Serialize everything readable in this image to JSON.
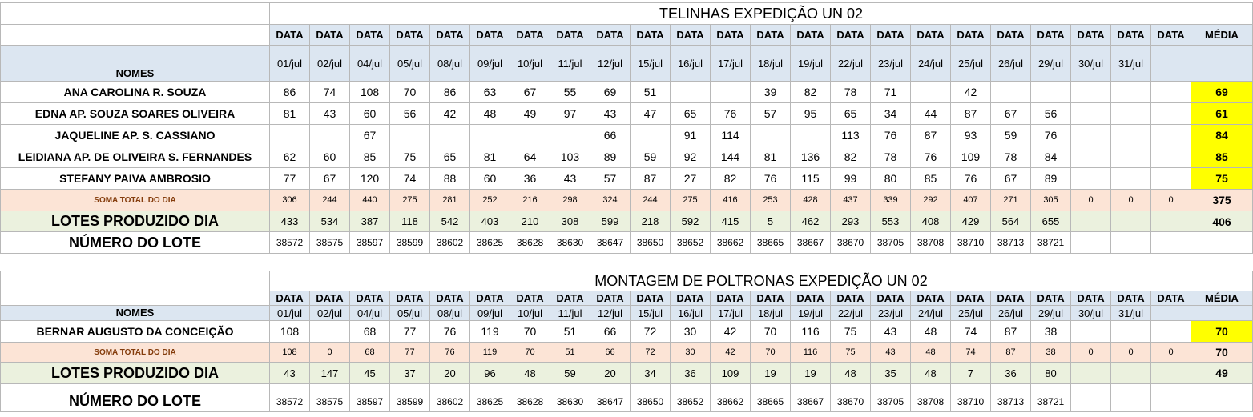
{
  "section1": {
    "title": "TELINHAS EXPEDIÇÃO UN 02",
    "date_header": "DATA",
    "avg_header": "MÉDIA",
    "nomes_label": "NOMES",
    "dates": [
      "01/jul",
      "02/jul",
      "04/jul",
      "05/jul",
      "08/jul",
      "09/jul",
      "10/jul",
      "11/jul",
      "12/jul",
      "15/jul",
      "16/jul",
      "17/jul",
      "18/jul",
      "19/jul",
      "22/jul",
      "23/jul",
      "24/jul",
      "25/jul",
      "26/jul",
      "29/jul",
      "30/jul",
      "31/jul",
      ""
    ],
    "rows": [
      {
        "name": "ANA CAROLINA R. SOUZA",
        "values": [
          "86",
          "74",
          "108",
          "70",
          "86",
          "63",
          "67",
          "55",
          "69",
          "51",
          "",
          "",
          "39",
          "82",
          "78",
          "71",
          "",
          "42",
          "",
          "",
          "",
          "",
          ""
        ],
        "avg": "69"
      },
      {
        "name": "EDNA AP. SOUZA SOARES OLIVEIRA",
        "values": [
          "81",
          "43",
          "60",
          "56",
          "42",
          "48",
          "49",
          "97",
          "43",
          "47",
          "65",
          "76",
          "57",
          "95",
          "65",
          "34",
          "44",
          "87",
          "67",
          "56",
          "",
          "",
          ""
        ],
        "avg": "61"
      },
      {
        "name": "JAQUELINE AP.  S. CASSIANO",
        "values": [
          "",
          "",
          "67",
          "",
          "",
          "",
          "",
          "",
          "66",
          "",
          "91",
          "114",
          "",
          "",
          "113",
          "76",
          "87",
          "93",
          "59",
          "76",
          "",
          "",
          ""
        ],
        "avg": "84"
      },
      {
        "name": "LEIDIANA AP. DE OLIVEIRA S. FERNANDES",
        "values": [
          "62",
          "60",
          "85",
          "75",
          "65",
          "81",
          "64",
          "103",
          "89",
          "59",
          "92",
          "144",
          "81",
          "136",
          "82",
          "78",
          "76",
          "109",
          "78",
          "84",
          "",
          "",
          ""
        ],
        "avg": "85"
      },
      {
        "name": "STEFANY PAIVA AMBROSIO",
        "values": [
          "77",
          "67",
          "120",
          "74",
          "88",
          "60",
          "36",
          "43",
          "57",
          "87",
          "27",
          "82",
          "76",
          "115",
          "99",
          "80",
          "85",
          "76",
          "67",
          "89",
          "",
          "",
          ""
        ],
        "avg": "75"
      }
    ],
    "soma": {
      "label": "SOMA TOTAL DO DIA",
      "values": [
        "306",
        "244",
        "440",
        "275",
        "281",
        "252",
        "216",
        "298",
        "324",
        "244",
        "275",
        "416",
        "253",
        "428",
        "437",
        "339",
        "292",
        "407",
        "271",
        "305",
        "0",
        "0",
        "0"
      ],
      "avg": "375"
    },
    "lotes": {
      "label": "LOTES PRODUZIDO DIA",
      "values": [
        "433",
        "534",
        "387",
        "118",
        "542",
        "403",
        "210",
        "308",
        "599",
        "218",
        "592",
        "415",
        "5",
        "462",
        "293",
        "553",
        "408",
        "429",
        "564",
        "655",
        "",
        "",
        ""
      ],
      "avg": "406"
    },
    "numero": {
      "label": "NÚMERO DO LOTE",
      "values": [
        "38572",
        "38575",
        "38597",
        "38599",
        "38602",
        "38625",
        "38628",
        "38630",
        "38647",
        "38650",
        "38652",
        "38662",
        "38665",
        "38667",
        "38670",
        "38705",
        "38708",
        "38710",
        "38713",
        "38721",
        "",
        "",
        ""
      ]
    }
  },
  "section2": {
    "title": "MONTAGEM DE POLTRONAS EXPEDIÇÃO UN 02",
    "date_header": "DATA",
    "avg_header": "MÉDIA",
    "nomes_label": "NOMES",
    "dates": [
      "01/jul",
      "02/jul",
      "04/jul",
      "05/jul",
      "08/jul",
      "09/jul",
      "10/jul",
      "11/jul",
      "12/jul",
      "15/jul",
      "16/jul",
      "17/jul",
      "18/jul",
      "19/jul",
      "22/jul",
      "23/jul",
      "24/jul",
      "25/jul",
      "26/jul",
      "29/jul",
      "30/jul",
      "31/jul",
      ""
    ],
    "rows": [
      {
        "name": "BERNAR AUGUSTO DA CONCEIÇÃO",
        "values": [
          "108",
          "",
          "68",
          "77",
          "76",
          "119",
          "70",
          "51",
          "66",
          "72",
          "30",
          "42",
          "70",
          "116",
          "75",
          "43",
          "48",
          "74",
          "87",
          "38",
          "",
          "",
          ""
        ],
        "avg": "70"
      }
    ],
    "soma": {
      "label": "SOMA TOTAL DO DIA",
      "values": [
        "108",
        "0",
        "68",
        "77",
        "76",
        "119",
        "70",
        "51",
        "66",
        "72",
        "30",
        "42",
        "70",
        "116",
        "75",
        "43",
        "48",
        "74",
        "87",
        "38",
        "0",
        "0",
        "0"
      ],
      "avg": "70"
    },
    "lotes": {
      "label": "LOTES PRODUZIDO DIA",
      "values": [
        "43",
        "147",
        "45",
        "37",
        "20",
        "96",
        "48",
        "59",
        "20",
        "34",
        "36",
        "109",
        "19",
        "19",
        "48",
        "35",
        "48",
        "7",
        "36",
        "80",
        "",
        "",
        ""
      ],
      "avg": "49"
    },
    "numero": {
      "label": "NÚMERO DO LOTE",
      "values": [
        "38572",
        "38575",
        "38597",
        "38599",
        "38602",
        "38625",
        "38628",
        "38630",
        "38647",
        "38650",
        "38652",
        "38662",
        "38665",
        "38667",
        "38670",
        "38705",
        "38708",
        "38710",
        "38713",
        "38721",
        "",
        "",
        ""
      ]
    }
  }
}
